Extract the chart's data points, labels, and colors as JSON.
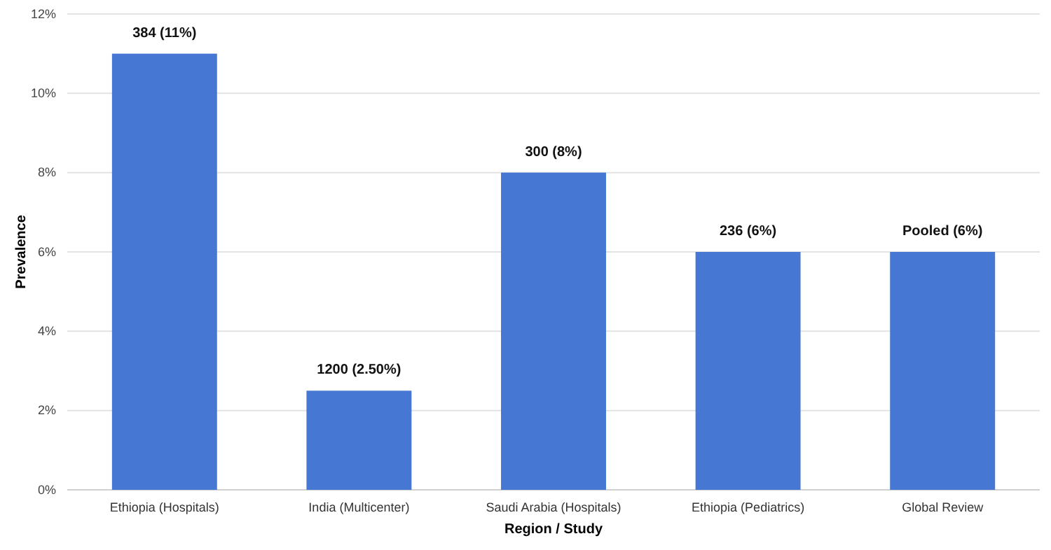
{
  "chart_data": {
    "type": "bar",
    "xlabel": "Region / Study",
    "ylabel": "Prevalence",
    "categories": [
      "Ethiopia (Hospitals)",
      "India (Multicenter)",
      "Saudi Arabia (Hospitals)",
      "Ethiopia (Pediatrics)",
      "Global Review"
    ],
    "values": [
      11,
      2.5,
      8,
      6,
      6
    ],
    "value_labels": [
      "384 (11%)",
      "1200 (2.50%)",
      "300 (8%)",
      "236 (6%)",
      "Pooled (6%)"
    ],
    "color": "#4677d2",
    "ylim": [
      0,
      12
    ],
    "yticks": [
      {
        "value": 0,
        "label": "0%"
      },
      {
        "value": 2,
        "label": "2%"
      },
      {
        "value": 4,
        "label": "4%"
      },
      {
        "value": 6,
        "label": "6%"
      },
      {
        "value": 8,
        "label": "8%"
      },
      {
        "value": 10,
        "label": "10%"
      },
      {
        "value": 12,
        "label": "12%"
      }
    ],
    "grid": "y"
  }
}
